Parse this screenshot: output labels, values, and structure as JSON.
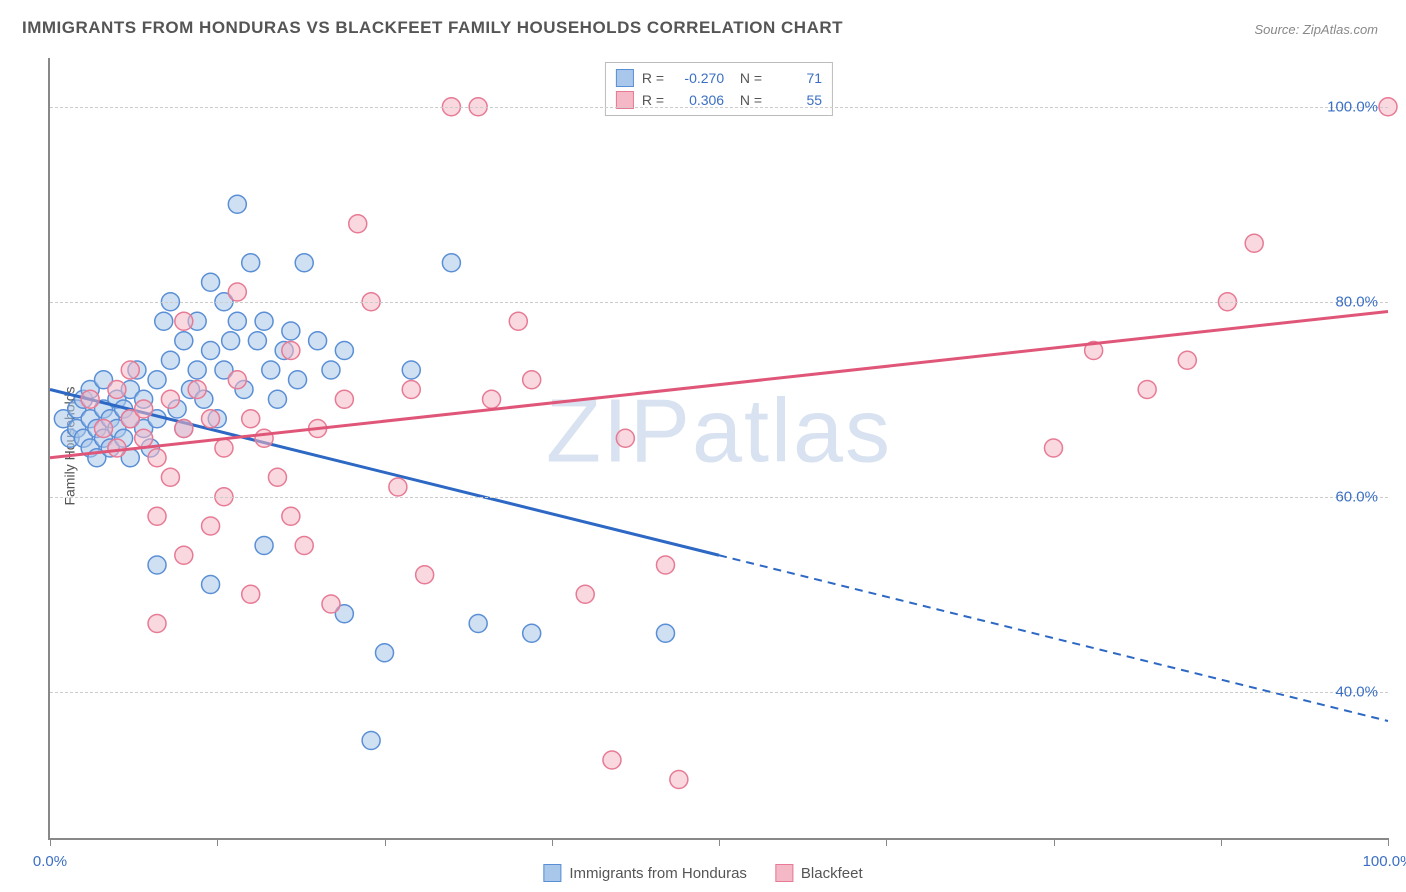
{
  "title": "IMMIGRANTS FROM HONDURAS VS BLACKFEET FAMILY HOUSEHOLDS CORRELATION CHART",
  "source": "Source: ZipAtlas.com",
  "y_axis_label": "Family Households",
  "watermark": "ZIPatlas",
  "chart": {
    "type": "scatter",
    "xlim": [
      0,
      100
    ],
    "ylim": [
      25,
      105
    ],
    "x_tick_positions": [
      0,
      12.5,
      25,
      37.5,
      50,
      62.5,
      75,
      87.5,
      100
    ],
    "x_tick_labels": {
      "0": "0.0%",
      "100": "100.0%"
    },
    "y_gridlines": [
      40,
      60,
      80,
      100
    ],
    "y_tick_labels": {
      "40": "40.0%",
      "60": "60.0%",
      "80": "80.0%",
      "100": "100.0%"
    },
    "background_color": "#ffffff",
    "grid_color": "#cccccc",
    "marker_radius": 9,
    "marker_opacity": 0.55,
    "series": [
      {
        "name": "Immigrants from Honduras",
        "fill_color": "#a9c7ea",
        "stroke_color": "#5a8fd6",
        "line_color": "#2d68c4",
        "R": "-0.270",
        "N": "71",
        "trend": {
          "x1": 0,
          "y1": 71,
          "x2": 50,
          "y2": 54,
          "x3": 100,
          "y3": 37,
          "solid_until_x": 50
        },
        "points": [
          [
            1,
            68
          ],
          [
            1.5,
            66
          ],
          [
            2,
            67
          ],
          [
            2,
            69
          ],
          [
            2.5,
            70
          ],
          [
            2.5,
            66
          ],
          [
            3,
            68
          ],
          [
            3,
            65
          ],
          [
            3,
            71
          ],
          [
            3.5,
            67
          ],
          [
            3.5,
            64
          ],
          [
            4,
            69
          ],
          [
            4,
            72
          ],
          [
            4,
            66
          ],
          [
            4.5,
            68
          ],
          [
            4.5,
            65
          ],
          [
            5,
            70
          ],
          [
            5,
            67
          ],
          [
            5.5,
            66
          ],
          [
            5.5,
            69
          ],
          [
            6,
            71
          ],
          [
            6,
            68
          ],
          [
            6,
            64
          ],
          [
            6.5,
            73
          ],
          [
            7,
            67
          ],
          [
            7,
            70
          ],
          [
            7.5,
            65
          ],
          [
            8,
            72
          ],
          [
            8,
            68
          ],
          [
            8.5,
            78
          ],
          [
            9,
            80
          ],
          [
            9,
            74
          ],
          [
            9.5,
            69
          ],
          [
            10,
            76
          ],
          [
            10,
            67
          ],
          [
            10.5,
            71
          ],
          [
            11,
            78
          ],
          [
            11,
            73
          ],
          [
            11.5,
            70
          ],
          [
            12,
            82
          ],
          [
            12,
            75
          ],
          [
            12.5,
            68
          ],
          [
            13,
            80
          ],
          [
            13,
            73
          ],
          [
            13.5,
            76
          ],
          [
            14,
            90
          ],
          [
            14,
            78
          ],
          [
            14.5,
            71
          ],
          [
            15,
            84
          ],
          [
            15.5,
            76
          ],
          [
            16,
            78
          ],
          [
            16.5,
            73
          ],
          [
            17,
            70
          ],
          [
            17.5,
            75
          ],
          [
            18,
            77
          ],
          [
            18.5,
            72
          ],
          [
            19,
            84
          ],
          [
            20,
            76
          ],
          [
            21,
            73
          ],
          [
            22,
            75
          ],
          [
            8,
            53
          ],
          [
            12,
            51
          ],
          [
            16,
            55
          ],
          [
            22,
            48
          ],
          [
            24,
            35
          ],
          [
            25,
            44
          ],
          [
            27,
            73
          ],
          [
            30,
            84
          ],
          [
            32,
            47
          ],
          [
            36,
            46
          ],
          [
            46,
            46
          ]
        ]
      },
      {
        "name": "Blackfeet",
        "fill_color": "#f4b8c6",
        "stroke_color": "#e77a94",
        "line_color": "#e05678",
        "R": "0.306",
        "N": "55",
        "trend": {
          "x1": 0,
          "y1": 64,
          "x2": 100,
          "y2": 79,
          "solid_until_x": 100
        },
        "points": [
          [
            3,
            70
          ],
          [
            4,
            67
          ],
          [
            5,
            65
          ],
          [
            5,
            71
          ],
          [
            6,
            68
          ],
          [
            6,
            73
          ],
          [
            7,
            66
          ],
          [
            7,
            69
          ],
          [
            8,
            64
          ],
          [
            8,
            58
          ],
          [
            8,
            47
          ],
          [
            9,
            70
          ],
          [
            9,
            62
          ],
          [
            10,
            78
          ],
          [
            10,
            67
          ],
          [
            10,
            54
          ],
          [
            11,
            71
          ],
          [
            12,
            68
          ],
          [
            12,
            57
          ],
          [
            13,
            65
          ],
          [
            13,
            60
          ],
          [
            14,
            81
          ],
          [
            14,
            72
          ],
          [
            15,
            68
          ],
          [
            15,
            50
          ],
          [
            16,
            66
          ],
          [
            17,
            62
          ],
          [
            18,
            75
          ],
          [
            18,
            58
          ],
          [
            19,
            55
          ],
          [
            20,
            67
          ],
          [
            21,
            49
          ],
          [
            22,
            70
          ],
          [
            23,
            88
          ],
          [
            24,
            80
          ],
          [
            26,
            61
          ],
          [
            27,
            71
          ],
          [
            28,
            52
          ],
          [
            30,
            100
          ],
          [
            32,
            100
          ],
          [
            33,
            70
          ],
          [
            35,
            78
          ],
          [
            36,
            72
          ],
          [
            40,
            50
          ],
          [
            42,
            33
          ],
          [
            43,
            66
          ],
          [
            46,
            53
          ],
          [
            47,
            31
          ],
          [
            75,
            65
          ],
          [
            78,
            75
          ],
          [
            82,
            71
          ],
          [
            85,
            74
          ],
          [
            88,
            80
          ],
          [
            90,
            86
          ],
          [
            100,
            100
          ]
        ]
      }
    ]
  },
  "legend_bottom": [
    {
      "label": "Immigrants from Honduras",
      "fill": "#a9c7ea",
      "stroke": "#5a8fd6"
    },
    {
      "label": "Blackfeet",
      "fill": "#f4b8c6",
      "stroke": "#e77a94"
    }
  ]
}
